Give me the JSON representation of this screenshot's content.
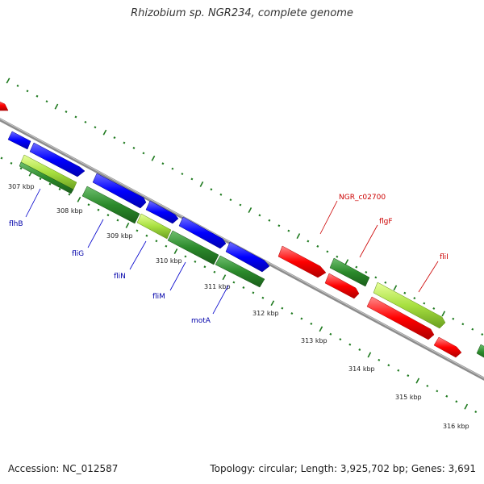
{
  "title": "Rhizobium sp. NGR234, complete genome",
  "accession_text": "Accession: NC_012587",
  "summary_text": "Topology: circular; Length: 3,925,702 bp; Genes: 3,691",
  "colors": {
    "backbone": "#8c8c8c",
    "tick": "#1f7a1f",
    "blue_gene": "#0000ff",
    "green_gene": "#2b8a2b",
    "lightgreen_gene": "#99dd33",
    "red_gene": "#ff0000",
    "blue_label": "#0000aa",
    "red_label": "#cc0000"
  },
  "scale": {
    "unit": "kbp",
    "labels": [
      {
        "kbp": 307,
        "text": "307 kbp"
      },
      {
        "kbp": 308,
        "text": "308 kbp"
      },
      {
        "kbp": 309,
        "text": "309 kbp"
      },
      {
        "kbp": 310,
        "text": "310 kbp"
      },
      {
        "kbp": 311,
        "text": "311 kbp"
      },
      {
        "kbp": 312,
        "text": "312 kbp"
      },
      {
        "kbp": 313,
        "text": "313 kbp"
      },
      {
        "kbp": 314,
        "text": "314 kbp"
      },
      {
        "kbp": 315,
        "text": "315 kbp"
      },
      {
        "kbp": 316,
        "text": "316 kbp"
      }
    ]
  },
  "gene_labels": [
    {
      "text": "flhB",
      "color": "blue"
    },
    {
      "text": "fliG",
      "color": "blue"
    },
    {
      "text": "fliN",
      "color": "blue"
    },
    {
      "text": "fliM",
      "color": "blue"
    },
    {
      "text": "motA",
      "color": "blue"
    },
    {
      "text": "NGR_c02700",
      "color": "red"
    },
    {
      "text": "flgF",
      "color": "red"
    },
    {
      "text": "fliI",
      "color": "red"
    }
  ]
}
